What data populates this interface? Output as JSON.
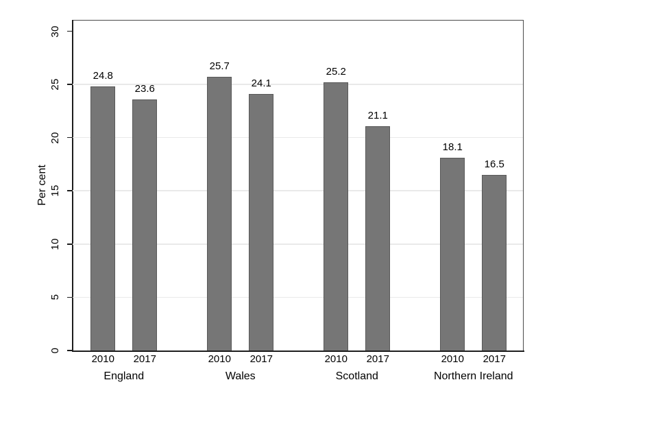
{
  "chart_data": {
    "type": "bar",
    "title": "",
    "xlabel": "",
    "ylabel": "Per cent",
    "ylim": [
      0,
      31
    ],
    "yticks": [
      0,
      5,
      10,
      15,
      20,
      25,
      30
    ],
    "gridlines": [
      5,
      10,
      15,
      20,
      25
    ],
    "legend": null,
    "categories": [
      "England",
      "Wales",
      "Scotland",
      "Northern Ireland"
    ],
    "groups": [
      {
        "label": "England",
        "bars": [
          {
            "x": "2010",
            "value": 24.8,
            "value_label": "24.8"
          },
          {
            "x": "2017",
            "value": 23.6,
            "value_label": "23.6"
          }
        ]
      },
      {
        "label": "Wales",
        "bars": [
          {
            "x": "2010",
            "value": 25.7,
            "value_label": "25.7"
          },
          {
            "x": "2017",
            "value": 24.1,
            "value_label": "24.1"
          }
        ]
      },
      {
        "label": "Scotland",
        "bars": [
          {
            "x": "2010",
            "value": 25.2,
            "value_label": "25.2"
          },
          {
            "x": "2017",
            "value": 21.1,
            "value_label": "21.1"
          }
        ]
      },
      {
        "label": "Northern Ireland",
        "bars": [
          {
            "x": "2010",
            "value": 18.1,
            "value_label": "18.1"
          },
          {
            "x": "2017",
            "value": 16.5,
            "value_label": "16.5"
          }
        ]
      }
    ],
    "colors": {
      "bar_fill": "#767676",
      "bar_border": "#585858",
      "grid": "#e9e9e9",
      "axis": "#1c1c1c",
      "box": "#4a4a4a",
      "text": "#000000"
    }
  }
}
